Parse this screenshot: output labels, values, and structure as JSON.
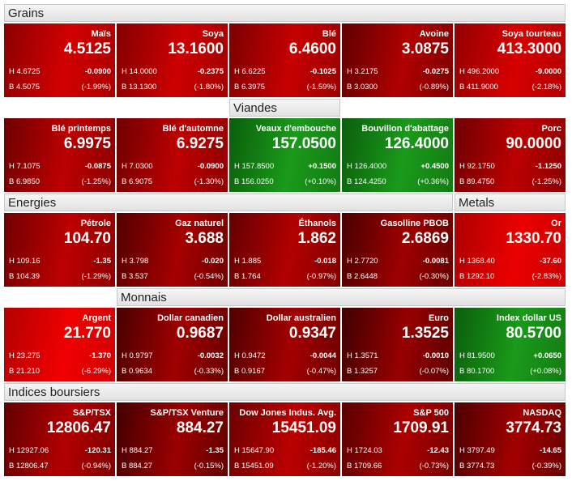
{
  "rows": [
    {
      "headers": [
        "Grains"
      ],
      "tiles": [
        {
          "name": "Maïs",
          "last": "4.5125",
          "high": "H 4.6725",
          "change": "-0.0900",
          "low": "B 4.5075",
          "pct": "(-1.99%)"
        },
        {
          "name": "Soya",
          "last": "13.1600",
          "high": "H 14.0000",
          "change": "-0.2375",
          "low": "B 13.1300",
          "pct": "(-1.80%)"
        },
        {
          "name": "Blé",
          "last": "6.4600",
          "high": "H 6.6225",
          "change": "-0.1025",
          "low": "B 6.3975",
          "pct": "(-1.59%)"
        },
        {
          "name": "Avoine",
          "last": "3.0875",
          "high": "H 3.2175",
          "change": "-0.0275",
          "low": "B 3.0300",
          "pct": "(-0.89%)"
        },
        {
          "name": "Soya tourteau",
          "last": "413.3000",
          "high": "H 496.2000",
          "change": "-9.0000",
          "low": "B 411.9000",
          "pct": "(-2.18%)"
        }
      ]
    },
    {
      "headers": [
        "Viandes"
      ],
      "tiles": [
        {
          "name": "Blé printemps",
          "last": "6.9975",
          "high": "H 7.1075",
          "change": "-0.0875",
          "low": "B 6.9850",
          "pct": "(-1.25%)"
        },
        {
          "name": "Blé d'automne",
          "last": "6.9275",
          "high": "H 7.0300",
          "change": "-0.0900",
          "low": "B 6.9075",
          "pct": "(-1.30%)"
        },
        {
          "name": "Veaux d'embouche",
          "last": "157.0500",
          "high": "H 157.8500",
          "change": "+0.1500",
          "low": "B 156.0250",
          "pct": "(+0.10%)"
        },
        {
          "name": "Bouvillon d'abattage",
          "last": "126.4000",
          "high": "H 126.4000",
          "change": "+0.4500",
          "low": "B 124.4250",
          "pct": "(+0.36%)"
        },
        {
          "name": "Porc",
          "last": "90.0000",
          "high": "H 92.1750",
          "change": "-1.1250",
          "low": "B 89.4750",
          "pct": "(-1.25%)"
        }
      ]
    },
    {
      "headers": [
        "Energies",
        "Metals"
      ],
      "tiles": [
        {
          "name": "Pétrole",
          "last": "104.70",
          "high": "H 109.16",
          "change": "-1.35",
          "low": "B 104.39",
          "pct": "(-1.29%)"
        },
        {
          "name": "Gaz naturel",
          "last": "3.688",
          "high": "H 3.798",
          "change": "-0.020",
          "low": "B 3.537",
          "pct": "(-0.54%)"
        },
        {
          "name": "Éthanols",
          "last": "1.862",
          "high": "H 1.885",
          "change": "-0.018",
          "low": "B 1.764",
          "pct": "(-0.97%)"
        },
        {
          "name": "Gasolline PBOB",
          "last": "2.6869",
          "high": "H 2.7720",
          "change": "-0.0081",
          "low": "B 2.6448",
          "pct": "(-0.30%)"
        },
        {
          "name": "Or",
          "last": "1330.70",
          "high": "H 1368.40",
          "change": "-37.60",
          "low": "B 1292.10",
          "pct": "(-2.83%)"
        }
      ]
    },
    {
      "headers": [
        "Monnais"
      ],
      "tiles": [
        {
          "name": "Argent",
          "last": "21.770",
          "high": "H 23.275",
          "change": "-1.370",
          "low": "B 21.210",
          "pct": "(-6.29%)"
        },
        {
          "name": "Dollar canadien",
          "last": "0.9687",
          "high": "H 0.9797",
          "change": "-0.0032",
          "low": "B 0.9634",
          "pct": "(-0.33%)"
        },
        {
          "name": "Dollar australien",
          "last": "0.9347",
          "high": "H 0.9472",
          "change": "-0.0044",
          "low": "B 0.9167",
          "pct": "(-0.47%)"
        },
        {
          "name": "Euro",
          "last": "1.3525",
          "high": "H 1.3571",
          "change": "-0.0010",
          "low": "B 1.3257",
          "pct": "(-0.07%)"
        },
        {
          "name": "Index dollar US",
          "last": "80.5700",
          "high": "H 81.9500",
          "change": "+0.0650",
          "low": "B 80.1700",
          "pct": "(+0.08%)"
        }
      ]
    },
    {
      "headers": [
        "Indices boursiers"
      ],
      "tiles": [
        {
          "name": "S&P/TSX",
          "last": "12806.47",
          "high": "H 12927.06",
          "change": "-120.31",
          "low": "B 12806.47",
          "pct": "(-0.94%)"
        },
        {
          "name": "S&P/TSX Venture",
          "last": "884.27",
          "high": "H 884.27",
          "change": "-1.35",
          "low": "B 884.27",
          "pct": "(-0.15%)"
        },
        {
          "name": "Dow Jones Indus. Avg.",
          "last": "15451.09",
          "high": "H 15647.90",
          "change": "-185.46",
          "low": "B 15451.09",
          "pct": "(-1.20%)"
        },
        {
          "name": "S&P 500",
          "last": "1709.91",
          "high": "H 1724.03",
          "change": "-12.43",
          "low": "B 1709.66",
          "pct": "(-0.73%)"
        },
        {
          "name": "NASDAQ",
          "last": "3774.73",
          "high": "H 3797.49",
          "change": "-14.65",
          "low": "B 3774.73",
          "pct": "(-0.39%)"
        }
      ]
    }
  ]
}
